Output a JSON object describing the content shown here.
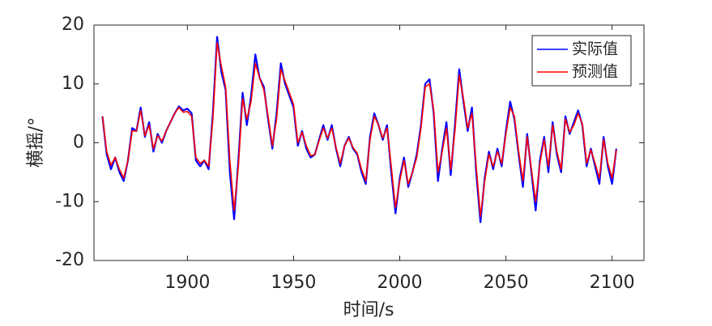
{
  "chart_data": {
    "type": "line",
    "xlabel": "时间/s",
    "ylabel": "横摇/°",
    "xlim": [
      1856,
      2115
    ],
    "ylim": [
      -20,
      20
    ],
    "xticks": [
      1900,
      1950,
      2000,
      2050,
      2100
    ],
    "yticks": [
      -20,
      -10,
      0,
      10,
      20
    ],
    "legend": "northeast",
    "x": [
      1860,
      1862,
      1864,
      1866,
      1868,
      1870,
      1872,
      1874,
      1876,
      1878,
      1880,
      1882,
      1884,
      1886,
      1888,
      1890,
      1892,
      1894,
      1896,
      1898,
      1900,
      1902,
      1904,
      1906,
      1908,
      1910,
      1912,
      1914,
      1916,
      1918,
      1920,
      1922,
      1924,
      1926,
      1928,
      1930,
      1932,
      1934,
      1936,
      1938,
      1940,
      1942,
      1944,
      1946,
      1948,
      1950,
      1952,
      1954,
      1956,
      1958,
      1960,
      1962,
      1964,
      1966,
      1968,
      1970,
      1972,
      1974,
      1976,
      1978,
      1980,
      1982,
      1984,
      1986,
      1988,
      1990,
      1992,
      1994,
      1996,
      1998,
      2000,
      2002,
      2004,
      2006,
      2008,
      2010,
      2012,
      2014,
      2016,
      2018,
      2020,
      2022,
      2024,
      2026,
      2028,
      2030,
      2032,
      2034,
      2036,
      2038,
      2040,
      2042,
      2044,
      2046,
      2048,
      2050,
      2052,
      2054,
      2056,
      2058,
      2060,
      2062,
      2064,
      2066,
      2068,
      2070,
      2072,
      2074,
      2076,
      2078,
      2080,
      2082,
      2084,
      2086,
      2088,
      2090,
      2092,
      2094,
      2096,
      2098,
      2100,
      2102
    ],
    "series": [
      {
        "name": "实际值",
        "color": "#0000ff",
        "values": [
          4.5,
          -2,
          -4.5,
          -2.5,
          -5,
          -6.5,
          -3,
          2.5,
          2,
          6,
          1,
          3.5,
          -1.5,
          1.5,
          0,
          2,
          3.5,
          5,
          6.2,
          5.5,
          5.8,
          5,
          -3,
          -4,
          -3,
          -4.5,
          5,
          18,
          12,
          9,
          -5,
          -13,
          -3,
          8.5,
          3,
          8,
          15,
          11,
          9.5,
          4,
          -1,
          5,
          13.5,
          10,
          8,
          6,
          -0.5,
          2,
          -1,
          -2.5,
          -2,
          0.5,
          3,
          0.5,
          3,
          -1,
          -4,
          -0.5,
          1,
          -1,
          -2,
          -5,
          -7,
          1,
          5,
          3,
          0.5,
          3,
          -5,
          -12,
          -6,
          -2.5,
          -7.5,
          -5,
          -2,
          3,
          10,
          10.8,
          5,
          -6.5,
          -1,
          3.5,
          -5.5,
          3,
          12.5,
          7,
          2,
          6,
          -5,
          -13.5,
          -6,
          -1.5,
          -4.5,
          -1,
          -4,
          2,
          7,
          4,
          -2,
          -7.5,
          1.5,
          -5,
          -11.5,
          -3,
          1,
          -5,
          3.5,
          -2,
          -5,
          4.5,
          1.5,
          3.5,
          5.5,
          3,
          -4,
          -1,
          -4,
          -7,
          1,
          -4,
          -7,
          -1
        ]
      },
      {
        "name": "预测值",
        "color": "#ff0000",
        "values": [
          4.5,
          -1.5,
          -3.8,
          -2.5,
          -4.5,
          -6,
          -3,
          2,
          2,
          5.5,
          1.2,
          3,
          -1,
          1.2,
          0.3,
          2,
          3.5,
          5,
          6,
          5.2,
          5.3,
          4.5,
          -2.5,
          -3.5,
          -3,
          -4,
          4,
          17,
          13,
          9.5,
          -3,
          -11.5,
          -4,
          7.5,
          4,
          7,
          13.5,
          11,
          9,
          4.5,
          -0.5,
          4,
          12.5,
          10.5,
          8.5,
          6.5,
          0,
          1.8,
          -0.5,
          -2.2,
          -2,
          0.3,
          2.5,
          0.8,
          2.5,
          -0.8,
          -3.5,
          -0.5,
          0.8,
          -0.8,
          -1.8,
          -4.5,
          -6.5,
          0.5,
          4.5,
          3,
          0.8,
          2.5,
          -4,
          -11,
          -6.5,
          -3,
          -7,
          -5,
          -2.5,
          2.5,
          9.5,
          10,
          5.5,
          -5,
          -1.5,
          2.5,
          -4.5,
          2,
          11.5,
          7.5,
          2.5,
          5,
          -4,
          -12.5,
          -6.5,
          -2,
          -4,
          -1.5,
          -3.5,
          1.5,
          6,
          4.5,
          -1.5,
          -6.5,
          1,
          -4.5,
          -10,
          -3.5,
          0.5,
          -4,
          3,
          -1.5,
          -4.5,
          4,
          1.8,
          3,
          5,
          3.2,
          -3.5,
          -1.2,
          -3.5,
          -6,
          0.5,
          -3.5,
          -6,
          -1.2
        ]
      }
    ]
  }
}
